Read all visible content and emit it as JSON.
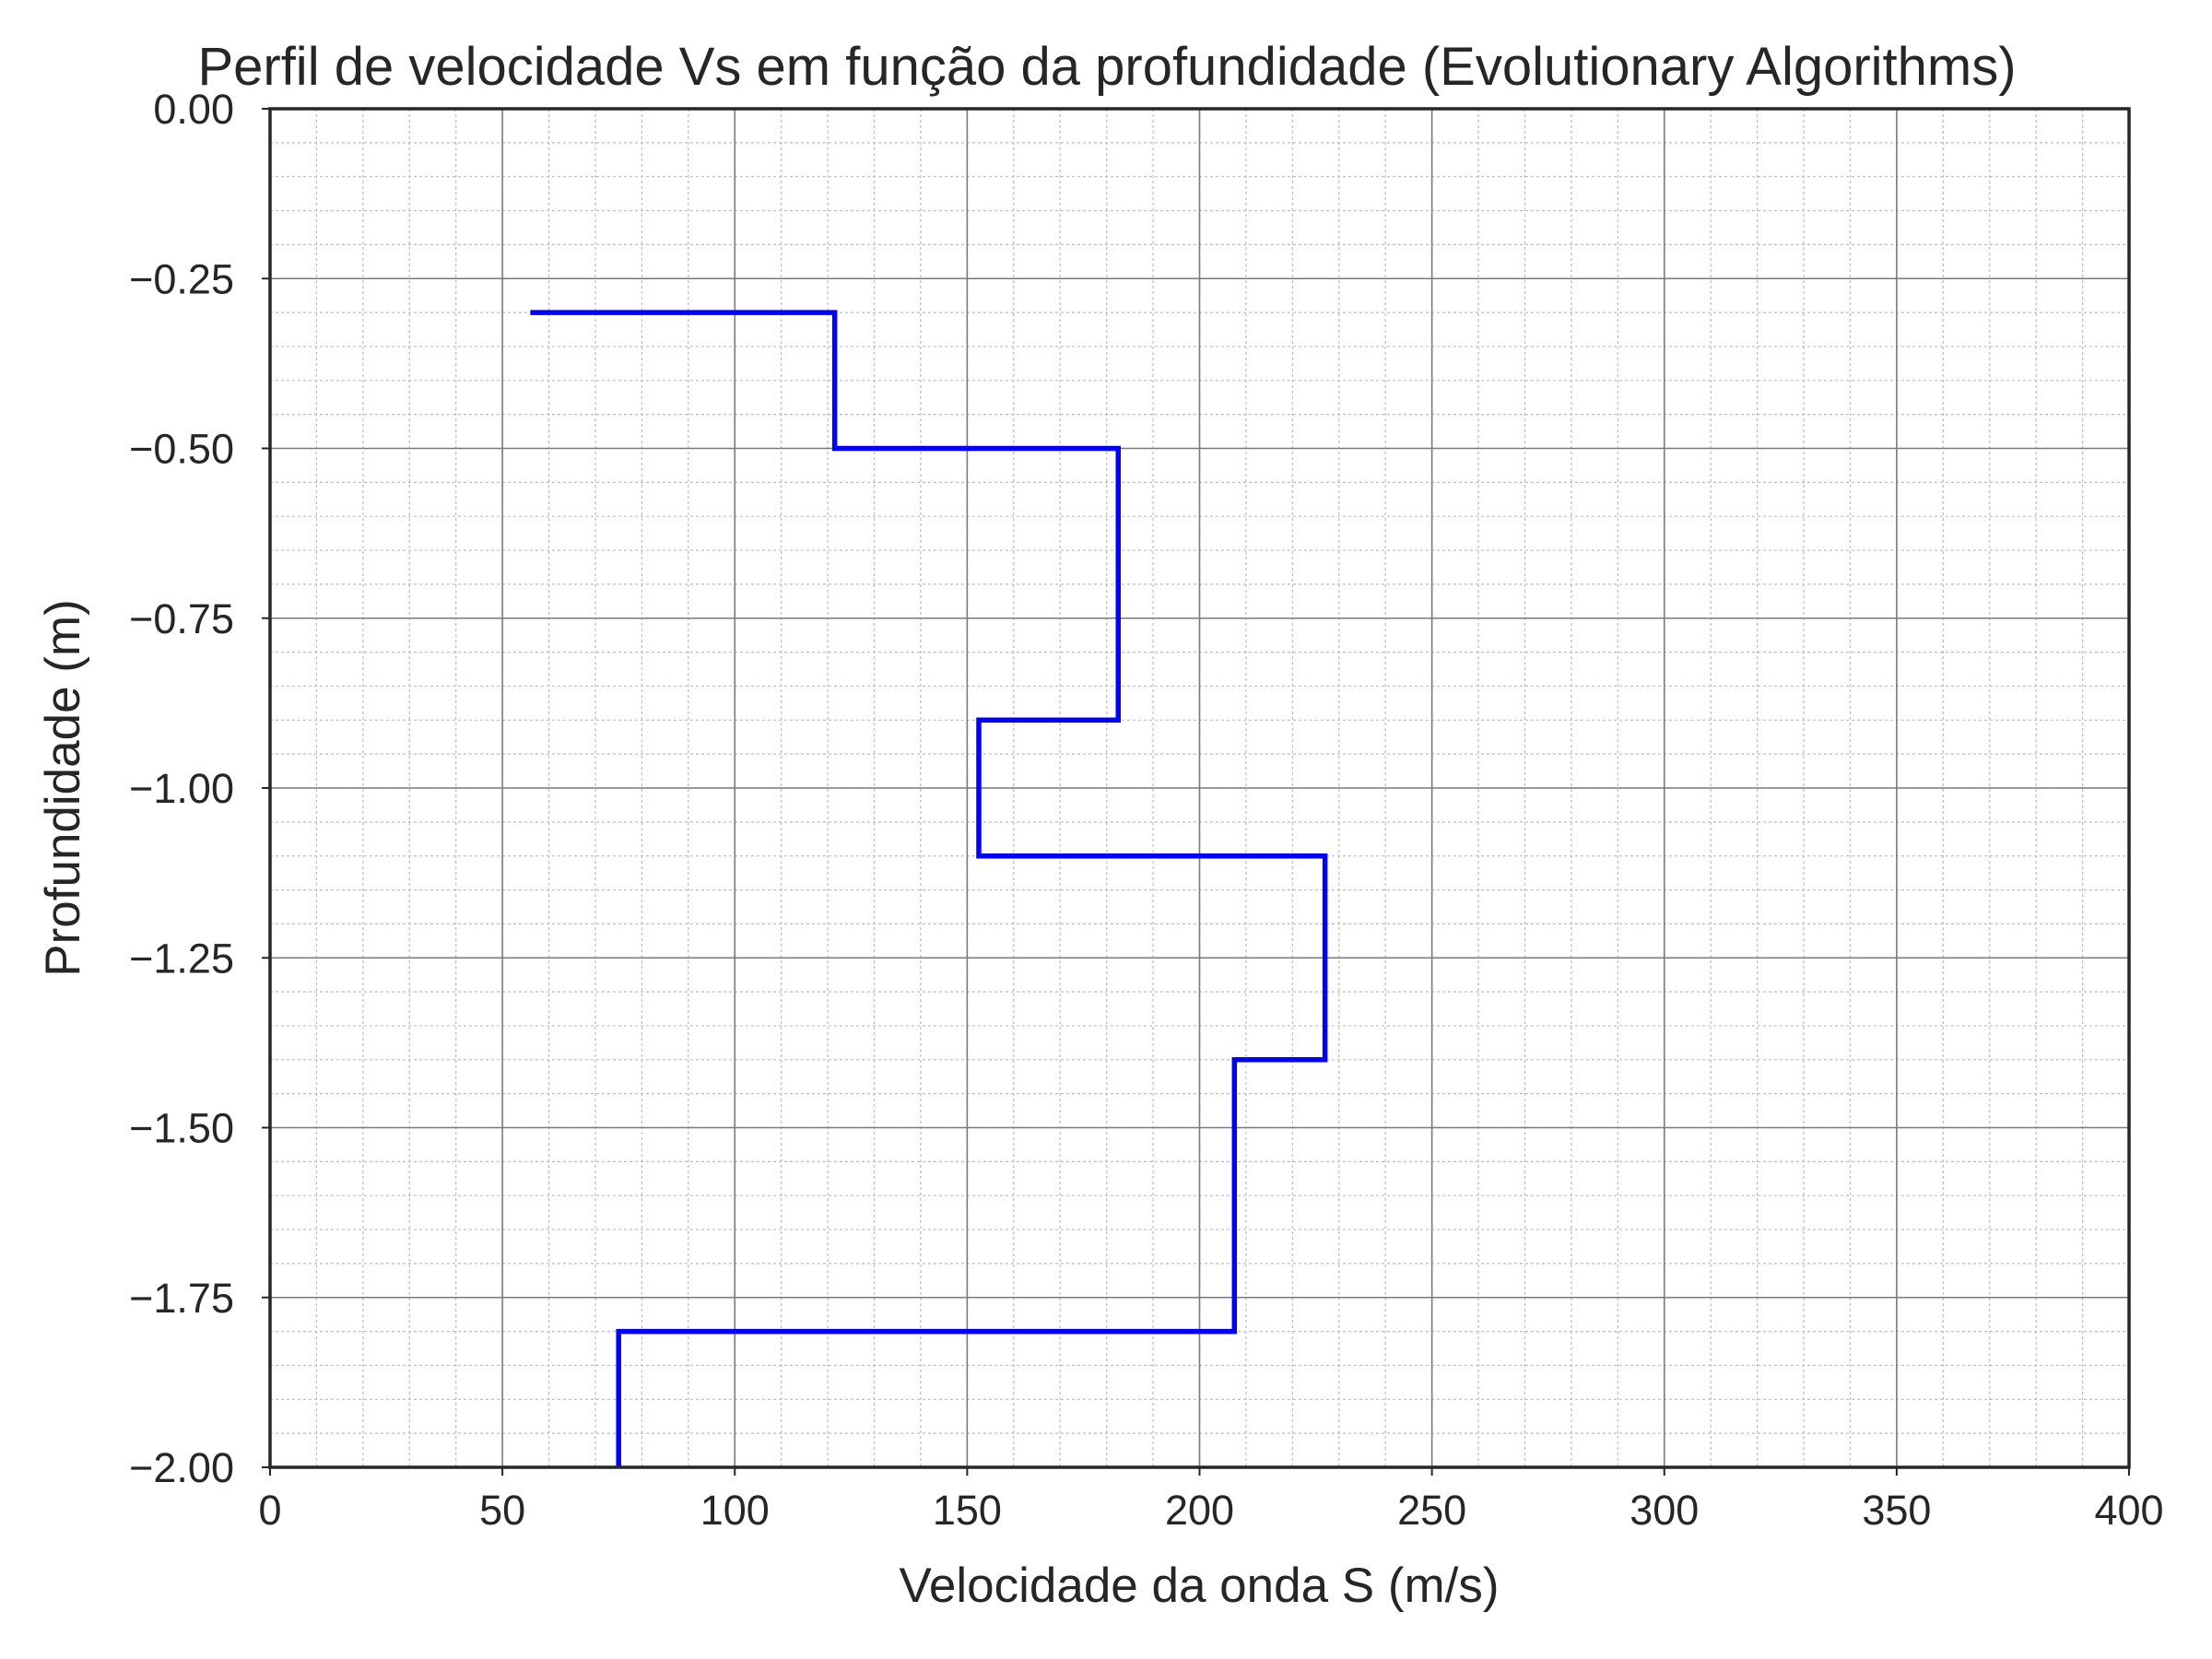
{
  "chart_data": {
    "type": "line",
    "title": "Perfil de velocidade Vs em função da profundidade (Evolutionary Algorithms)",
    "xlabel": "Velocidade da onda S (m/s)",
    "ylabel": "Profundidade (m)",
    "xlim": [
      0,
      400
    ],
    "ylim": [
      -2.0,
      0.0
    ],
    "xticks": [
      0,
      50,
      100,
      150,
      200,
      250,
      300,
      350,
      400
    ],
    "xtick_labels": [
      "0",
      "50",
      "100",
      "150",
      "200",
      "250",
      "300",
      "350",
      "400"
    ],
    "yticks": [
      0.0,
      -0.25,
      -0.5,
      -0.75,
      -1.0,
      -1.25,
      -1.5,
      -1.75,
      -2.0
    ],
    "ytick_labels": [
      "0.00",
      "−0.25",
      "−0.50",
      "−0.75",
      "−1.00",
      "−1.25",
      "−1.50",
      "−1.75",
      "−2.00"
    ],
    "grid": true,
    "minor_grid": true,
    "x_minor_step": 10,
    "y_minor_step": 0.05,
    "series": [
      {
        "color": "#0000ff",
        "step": true,
        "x": [
          56,
          121.5,
          121.5,
          182.5,
          182.5,
          152.5,
          152.5,
          227,
          227,
          207.5,
          207.5,
          75,
          75
        ],
        "y": [
          -0.3,
          -0.3,
          -0.5,
          -0.5,
          -0.9,
          -0.9,
          -1.1,
          -1.1,
          -1.4,
          -1.4,
          -1.8,
          -1.8,
          -2.0
        ]
      }
    ]
  }
}
